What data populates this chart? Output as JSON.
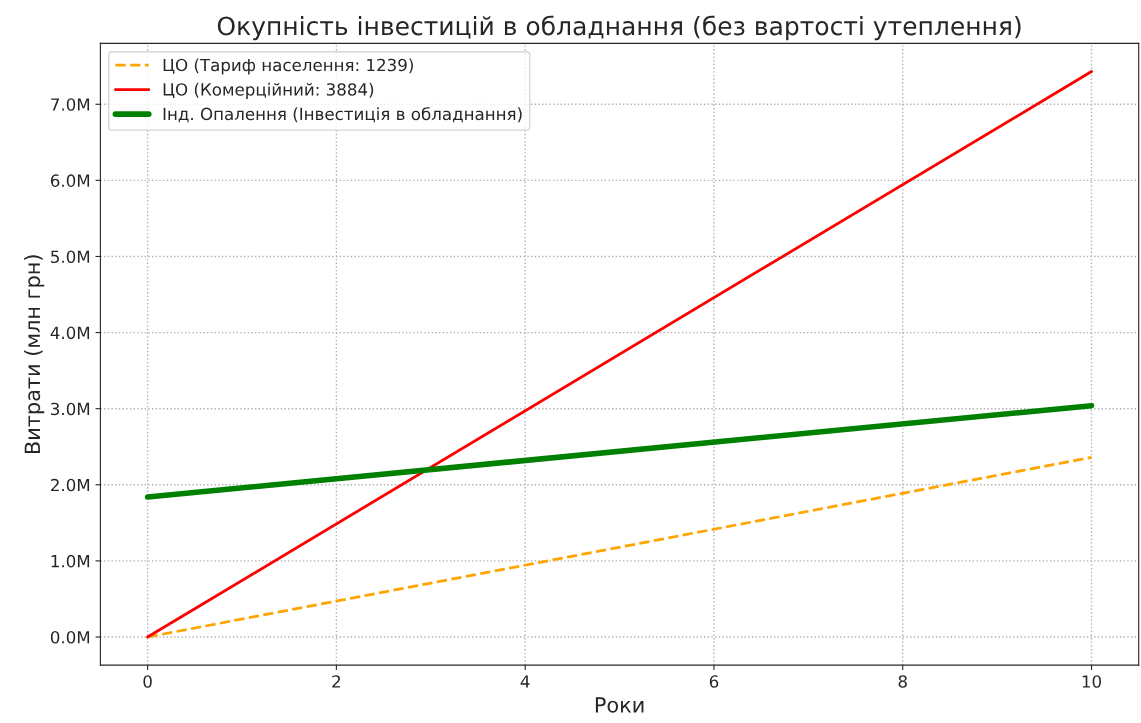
{
  "chart_data": {
    "type": "line",
    "title": "Окупність інвестицій в обладнання (без вартості утеплення)",
    "xlabel": "Роки",
    "ylabel": "Витрати (млн грн)",
    "x": [
      0,
      10
    ],
    "series": [
      {
        "name": "ЦО (Тариф населення: 1239)",
        "color": "#ffa500",
        "values": [
          0,
          2.36
        ],
        "line_style": "dashed"
      },
      {
        "name": "ЦО (Комерційний: 3884)",
        "color": "#ff0000",
        "values": [
          0,
          7.43
        ],
        "line_style": "solid"
      },
      {
        "name": "Інд. Опалення (Інвестиція в обладнання)",
        "color": "#008000",
        "values": [
          1.84,
          3.04
        ],
        "line_style": "solid"
      }
    ],
    "xlim": [
      -0.5,
      10.5
    ],
    "xticks": [
      0,
      2,
      4,
      6,
      8,
      10
    ],
    "ylim": [
      -0.37,
      7.8
    ],
    "yticks": [
      {
        "value": 0,
        "label": "0.0M"
      },
      {
        "value": 1,
        "label": "1.0M"
      },
      {
        "value": 2,
        "label": "2.0M"
      },
      {
        "value": 3,
        "label": "3.0M"
      },
      {
        "value": 4,
        "label": "4.0M"
      },
      {
        "value": 5,
        "label": "5.0M"
      },
      {
        "value": 6,
        "label": "6.0M"
      },
      {
        "value": 7,
        "label": "7.0M"
      }
    ],
    "grid": true,
    "legend": "top left",
    "marker": "none"
  }
}
